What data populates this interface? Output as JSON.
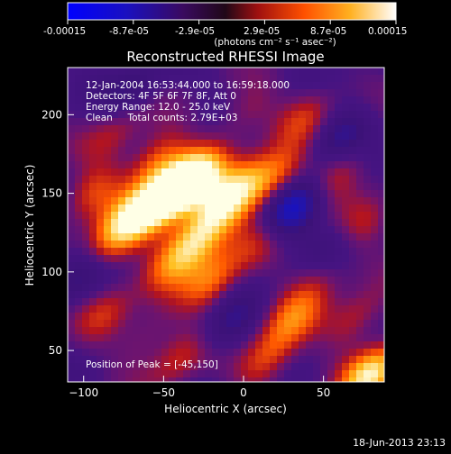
{
  "colorbar": {
    "ticks": [
      "-0.00015",
      "-8.7e-05",
      "-2.9e-05",
      "2.9e-05",
      "8.7e-05",
      "0.00015"
    ],
    "unit_label": "(photons cm⁻² s⁻¹ asec⁻²)",
    "min": -0.00015,
    "max": 0.00015
  },
  "plot": {
    "title": "Reconstructed RHESSI Image",
    "xlabel": "Heliocentric X (arcsec)",
    "ylabel": "Heliocentric Y (arcsec)",
    "xlim": [
      -110,
      88
    ],
    "ylim": [
      30,
      230
    ],
    "xticks": [
      -100,
      -50,
      0,
      50
    ],
    "yticks": [
      50,
      100,
      150,
      200
    ]
  },
  "info": {
    "line1": "12-Jan-2004 16:53:44.000 to 16:59:18.000",
    "line2": "Detectors: 4F 5F 6F 7F 8F, Att 0",
    "line3": "Energy Range: 12.0 - 25.0 keV",
    "line4": "Clean     Total counts: 2.79E+03",
    "peak": "Position of Peak = [-45,150]"
  },
  "footer": {
    "timestamp": "18-Jun-2013 23:13"
  },
  "colors": {
    "background": "#000000",
    "text": "#ffffff",
    "colormap": [
      "#0000ff",
      "#2a0a70",
      "#5a1a8a",
      "#c02020",
      "#ff8000",
      "#ffff60",
      "#ffffff"
    ]
  },
  "chart_data": {
    "type": "heatmap",
    "peak_position": [
      -45,
      150
    ],
    "blobs": [
      {
        "x": -45,
        "y": 150,
        "amp": 1.0
      },
      {
        "x": -30,
        "y": 160,
        "amp": 0.85
      },
      {
        "x": -15,
        "y": 140,
        "amp": 0.6
      },
      {
        "x": -60,
        "y": 140,
        "amp": 0.55
      },
      {
        "x": -75,
        "y": 130,
        "amp": 0.55
      },
      {
        "x": -55,
        "y": 170,
        "amp": 0.5
      },
      {
        "x": 0,
        "y": 155,
        "amp": 0.55
      },
      {
        "x": 20,
        "y": 160,
        "amp": 0.5
      },
      {
        "x": -30,
        "y": 120,
        "amp": 0.7
      },
      {
        "x": -20,
        "y": 95,
        "amp": 0.55
      },
      {
        "x": -45,
        "y": 105,
        "amp": 0.35
      },
      {
        "x": -90,
        "y": 110,
        "amp": 0.45
      },
      {
        "x": -95,
        "y": 150,
        "amp": 0.4
      },
      {
        "x": -80,
        "y": 190,
        "amp": 0.3
      },
      {
        "x": 40,
        "y": 200,
        "amp": 0.35
      },
      {
        "x": 60,
        "y": 165,
        "amp": 0.35
      },
      {
        "x": 50,
        "y": 100,
        "amp": 0.4
      },
      {
        "x": 30,
        "y": 70,
        "amp": 0.45
      },
      {
        "x": 70,
        "y": 70,
        "amp": 0.35
      },
      {
        "x": 15,
        "y": 45,
        "amp": 0.45
      },
      {
        "x": 80,
        "y": 35,
        "amp": 0.9
      },
      {
        "x": -60,
        "y": 60,
        "amp": 0.25
      },
      {
        "x": -85,
        "y": 75,
        "amp": 0.3
      },
      {
        "x": 10,
        "y": 120,
        "amp": 0.25
      },
      {
        "x": 75,
        "y": 130,
        "amp": 0.3
      },
      {
        "x": 0,
        "y": 200,
        "amp": 0.25
      },
      {
        "x": -40,
        "y": 45,
        "amp": 0.35
      }
    ],
    "negative_spots": [
      {
        "x": 30,
        "y": 140,
        "amp": -0.7
      },
      {
        "x": -100,
        "y": 100,
        "amp": -0.5
      },
      {
        "x": 60,
        "y": 185,
        "amp": -0.4
      },
      {
        "x": -70,
        "y": 215,
        "amp": -0.3
      },
      {
        "x": 55,
        "y": 110,
        "amp": -0.35
      },
      {
        "x": -10,
        "y": 65,
        "amp": -0.35
      }
    ]
  }
}
